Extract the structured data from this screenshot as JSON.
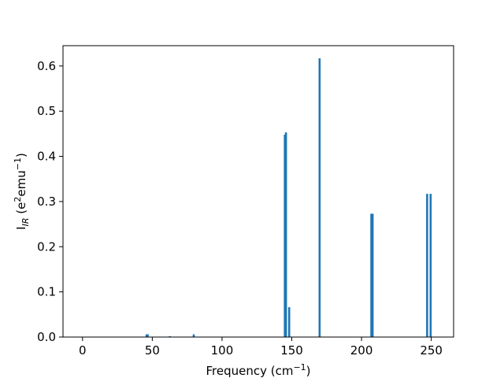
{
  "chart_data": {
    "type": "bar",
    "xlabel": "Frequency (cm⁻¹)",
    "ylabel": "I_IR (e²emu⁻¹)",
    "xlim": [
      -14,
      266
    ],
    "ylim": [
      0,
      0.645
    ],
    "xticks": [
      0,
      50,
      100,
      150,
      200,
      250
    ],
    "yticks": [
      0.0,
      0.1,
      0.2,
      0.3,
      0.4,
      0.5,
      0.6
    ],
    "bar_width_units": 1.2,
    "color": "#1f77b4",
    "grid": false,
    "x": [
      45.8,
      46.6,
      62.5,
      79.6,
      144.9,
      145.7,
      148.0,
      169.8,
      206.9,
      207.8,
      246.9,
      249.4
    ],
    "values": [
      0.006,
      0.006,
      0.002,
      0.006,
      0.448,
      0.453,
      0.066,
      0.617,
      0.273,
      0.273,
      0.317,
      0.317
    ]
  }
}
